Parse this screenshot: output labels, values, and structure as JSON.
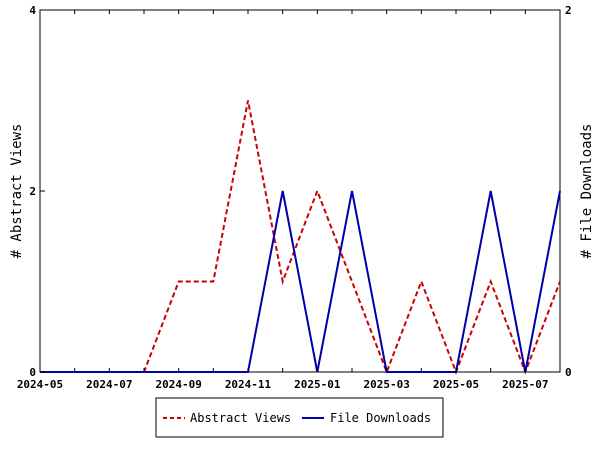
{
  "chart_data": {
    "type": "line",
    "title": "",
    "x": [
      "2024-05",
      "2024-06",
      "2024-07",
      "2024-08",
      "2024-09",
      "2024-10",
      "2024-11",
      "2024-12",
      "2025-01",
      "2025-02",
      "2025-03",
      "2025-04",
      "2025-05",
      "2025-06",
      "2025-07",
      "2025-08"
    ],
    "x_tick_labels": [
      "2024-05",
      "2024-07",
      "2024-09",
      "2024-11",
      "2025-01",
      "2025-03",
      "2025-05",
      "2025-07"
    ],
    "y_left": {
      "label": "# Abstract Views",
      "range": [
        0,
        4
      ],
      "ticks": [
        "0",
        "2",
        "4"
      ]
    },
    "y_right": {
      "label": "# File Downloads",
      "range": [
        0,
        2
      ],
      "ticks": [
        "0",
        "2"
      ]
    },
    "series": [
      {
        "name": "Abstract Views",
        "axis": "left",
        "style": "dashed",
        "color": "#cc0000",
        "values": [
          0,
          0,
          0,
          0,
          1,
          1,
          3,
          1,
          2,
          1,
          0,
          1,
          0,
          1,
          0,
          1
        ]
      },
      {
        "name": "File Downloads",
        "axis": "right",
        "style": "solid",
        "color": "#0000aa",
        "values": [
          0,
          0,
          0,
          0,
          0,
          0,
          0,
          1,
          0,
          1,
          0,
          0,
          0,
          1,
          0,
          1
        ]
      }
    ],
    "grid": false,
    "legend_position": "bottom"
  }
}
